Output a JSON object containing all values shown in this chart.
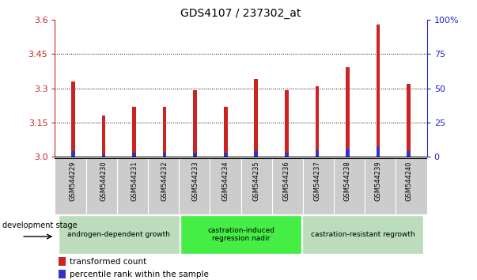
{
  "title": "GDS4107 / 237302_at",
  "samples": [
    "GSM544229",
    "GSM544230",
    "GSM544231",
    "GSM544232",
    "GSM544233",
    "GSM544234",
    "GSM544235",
    "GSM544236",
    "GSM544237",
    "GSM544238",
    "GSM544239",
    "GSM544240"
  ],
  "transformed_count": [
    3.33,
    3.18,
    3.22,
    3.22,
    3.29,
    3.22,
    3.34,
    3.29,
    3.31,
    3.39,
    3.58,
    3.32
  ],
  "percentile_rank_pct": [
    4,
    2,
    3,
    3,
    3,
    3,
    4,
    3,
    5,
    6,
    7,
    4
  ],
  "ymin": 3.0,
  "ymax": 3.6,
  "yticks_left": [
    3.0,
    3.15,
    3.3,
    3.45,
    3.6
  ],
  "yticks_right_vals": [
    0,
    25,
    50,
    75,
    100
  ],
  "yticks_right_labels": [
    "0",
    "25",
    "50",
    "75",
    "100%"
  ],
  "grid_vals": [
    3.15,
    3.3,
    3.45
  ],
  "bar_color_red": "#cc2222",
  "bar_color_blue": "#3333cc",
  "bar_width": 0.12,
  "groups": [
    {
      "label": "androgen-dependent growth",
      "start": 0,
      "end": 3,
      "color": "#bbddbb"
    },
    {
      "label": "castration-induced\nregression nadir",
      "start": 4,
      "end": 7,
      "color": "#44ee44"
    },
    {
      "label": "castration-resistant regrowth",
      "start": 8,
      "end": 11,
      "color": "#bbddbb"
    }
  ],
  "development_stage_label": "development stage",
  "legend_red_label": "transformed count",
  "legend_blue_label": "percentile rank within the sample",
  "title_fontsize": 10,
  "axis_label_color_left": "#cc2222",
  "axis_label_color_right": "#2222cc",
  "xticklabel_bg": "#cccccc",
  "xticklabel_sep_color": "#ffffff"
}
